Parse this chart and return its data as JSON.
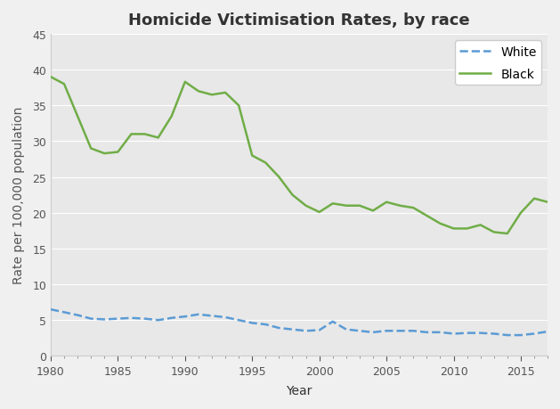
{
  "title": "Homicide Victimisation Rates, by race",
  "xlabel": "Year",
  "ylabel": "Rate per 100,000 population",
  "ylim": [
    0,
    45
  ],
  "yticks": [
    0,
    5,
    10,
    15,
    20,
    25,
    30,
    35,
    40,
    45
  ],
  "xlim": [
    1980,
    2017
  ],
  "xticks": [
    1980,
    1985,
    1990,
    1995,
    2000,
    2005,
    2010,
    2015
  ],
  "outer_bg_color": "#f0f0f0",
  "plot_bg_color": "#e8e8e8",
  "white_years": [
    1980,
    1981,
    1982,
    1983,
    1984,
    1985,
    1986,
    1987,
    1988,
    1989,
    1990,
    1991,
    1992,
    1993,
    1994,
    1995,
    1996,
    1997,
    1998,
    1999,
    2000,
    2001,
    2002,
    2003,
    2004,
    2005,
    2006,
    2007,
    2008,
    2009,
    2010,
    2011,
    2012,
    2013,
    2014,
    2015,
    2016,
    2017
  ],
  "white_values": [
    6.5,
    6.1,
    5.7,
    5.2,
    5.1,
    5.2,
    5.3,
    5.2,
    5.0,
    5.3,
    5.5,
    5.8,
    5.6,
    5.4,
    5.0,
    4.6,
    4.4,
    3.9,
    3.7,
    3.5,
    3.6,
    4.8,
    3.7,
    3.5,
    3.3,
    3.5,
    3.5,
    3.5,
    3.3,
    3.3,
    3.1,
    3.2,
    3.2,
    3.1,
    2.9,
    2.9,
    3.1,
    3.4
  ],
  "black_years": [
    1980,
    1981,
    1982,
    1983,
    1984,
    1985,
    1986,
    1987,
    1988,
    1989,
    1990,
    1991,
    1992,
    1993,
    1994,
    1995,
    1996,
    1997,
    1998,
    1999,
    2000,
    2001,
    2002,
    2003,
    2004,
    2005,
    2006,
    2007,
    2008,
    2009,
    2010,
    2011,
    2012,
    2013,
    2014,
    2015,
    2016,
    2017
  ],
  "black_values": [
    39.0,
    38.0,
    33.5,
    29.0,
    28.3,
    28.5,
    31.0,
    31.0,
    30.5,
    33.5,
    38.3,
    37.0,
    36.5,
    36.8,
    35.0,
    28.0,
    27.0,
    25.0,
    22.5,
    21.0,
    20.1,
    21.3,
    21.0,
    21.0,
    20.3,
    21.5,
    21.0,
    20.7,
    19.6,
    18.5,
    17.8,
    17.8,
    18.3,
    17.3,
    17.1,
    20.0,
    22.0,
    21.5
  ],
  "white_color": "#5b9bd5",
  "black_color": "#70ad47",
  "white_linestyle": "--",
  "black_linestyle": "-",
  "linewidth": 1.8,
  "grid_color": "#ffffff",
  "title_fontsize": 13,
  "label_fontsize": 10,
  "tick_fontsize": 9,
  "legend_fontsize": 10
}
